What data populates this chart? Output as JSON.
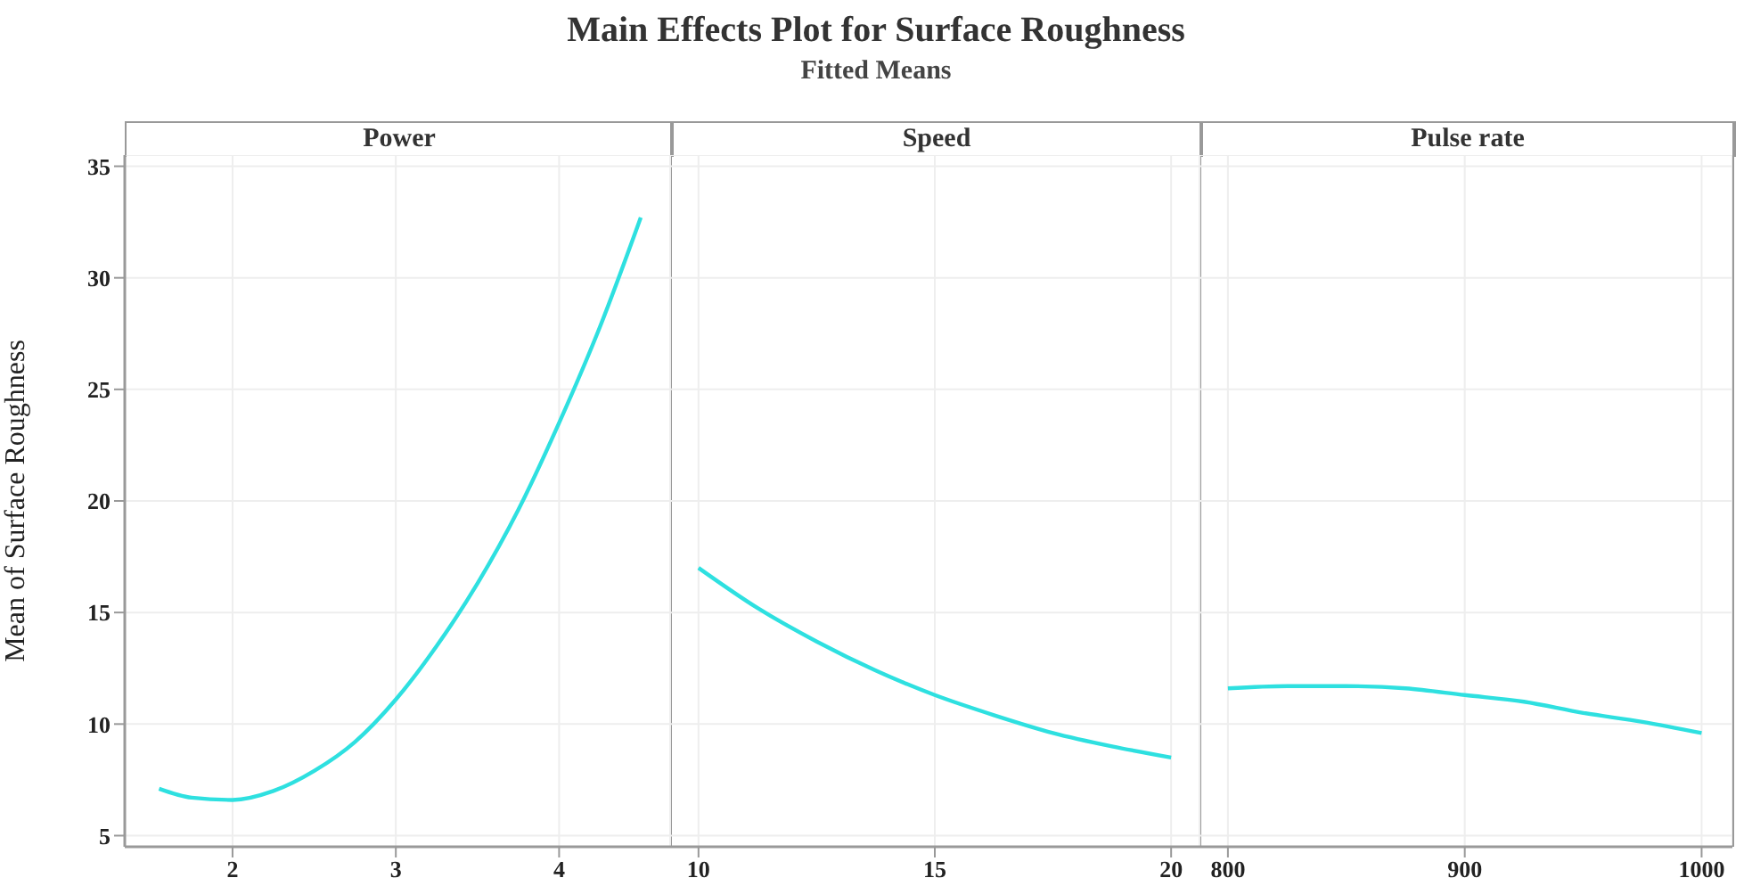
{
  "chart_data": [
    {
      "type": "line",
      "xlabel": "Power",
      "ylabel": "Mean of Surface Roughness",
      "color": "#2ee0e0",
      "x": [
        1.55,
        1.75,
        2,
        2.25,
        2.5,
        2.75,
        3,
        3.25,
        3.5,
        3.75,
        4,
        4.25,
        4.5
      ],
      "values": [
        7.1,
        6.7,
        6.6,
        7.0,
        7.9,
        9.2,
        11.1,
        13.5,
        16.3,
        19.6,
        23.5,
        27.8,
        32.7
      ],
      "xlim": [
        1.34,
        4.68
      ],
      "xticks": [
        2,
        3,
        4
      ],
      "ylim": [
        4.5,
        35.5
      ],
      "yticks": [
        5,
        10,
        15,
        20,
        25,
        30,
        35
      ],
      "grid": true
    },
    {
      "type": "line",
      "title": "Main Effects Plot for Surface Roughness",
      "subtitle": "Fitted Means",
      "xlabel": "Speed",
      "color": "#2ee0e0",
      "x": [
        10,
        11.25,
        12.5,
        13.75,
        15,
        16.25,
        17.5,
        18.75,
        20
      ],
      "values": [
        17.0,
        15.2,
        13.7,
        12.4,
        11.3,
        10.4,
        9.6,
        9.0,
        8.5
      ],
      "xlim": [
        9.4,
        20.6
      ],
      "xticks": [
        10,
        15,
        20
      ],
      "ylim": [
        4.5,
        35.5
      ],
      "yticks": [
        5,
        10,
        15,
        20,
        25,
        30,
        35
      ],
      "grid": true,
      "tick_labels": "x"
    },
    {
      "type": "line",
      "xlabel": "Pulse rate",
      "color": "#2ee0e0",
      "x": [
        800,
        825,
        850,
        875,
        900,
        925,
        950,
        975,
        1000
      ],
      "values": [
        11.6,
        11.7,
        11.7,
        11.6,
        11.3,
        11.0,
        10.5,
        10.1,
        9.6
      ],
      "xlim": [
        788,
        1013
      ],
      "xticks": [
        800,
        900,
        1000
      ],
      "ylim": [
        4.5,
        35.5
      ],
      "yticks": [
        5,
        10,
        15,
        20,
        25,
        30,
        35
      ],
      "grid": true,
      "tick_labels": "x"
    }
  ]
}
